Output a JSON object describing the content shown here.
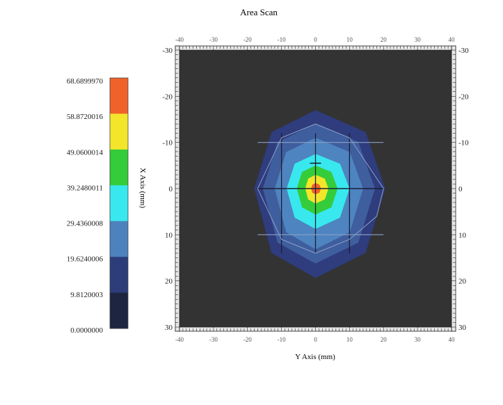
{
  "chart_data": {
    "type": "heatmap",
    "title": "Area Scan",
    "xlabel": "Y Axis (mm)",
    "ylabel": "X Axis (mm)",
    "x_range": [
      -40,
      40
    ],
    "y_range": [
      -30,
      30
    ],
    "x_ticks_small": [
      "-40",
      "-30",
      "-20",
      "-10",
      "0",
      "10",
      "20",
      "30",
      "40"
    ],
    "y_ticks_main": [
      "-30",
      "-20",
      "-10",
      "0",
      "10",
      "20",
      "30"
    ],
    "y_inverted": true,
    "colorbar": {
      "labels": [
        "68.6899970",
        "58.8720016",
        "49.0600014",
        "39.2480011",
        "29.4360008",
        "19.6240006",
        "9.8120003",
        "0.0000000"
      ],
      "bands_top_to_bottom": [
        "#f0622a",
        "#f3e62a",
        "#34cc3a",
        "#38e8ee",
        "#4e82bc",
        "#2c3d7a",
        "#1e2540"
      ]
    },
    "peak": {
      "x": 0,
      "y": 0,
      "value": 68.69
    },
    "contour_levels": [
      {
        "value": 9.812,
        "color": "#2f3c7d",
        "radii_x": [
          20.5,
          18,
          14,
          8
        ],
        "radii_y": [
          17,
          15.5,
          12.5,
          11
        ]
      },
      {
        "value": 19.624,
        "color": "#3f5e9e",
        "radii_x": [
          17.5,
          15.5,
          11.5,
          6
        ],
        "radii_y": [
          14,
          13,
          10.5,
          9
        ]
      },
      {
        "value": 29.436,
        "color": "#4e84c0",
        "radii_x": [
          14,
          12,
          9,
          4
        ],
        "radii_y": [
          11,
          10.5,
          8.5,
          7
        ]
      },
      {
        "value": 39.248,
        "color": "#38e8ee",
        "radii_x": [
          10,
          8.5,
          6.5,
          3
        ],
        "radii_y": [
          7.5,
          7,
          5.8,
          4.8
        ]
      },
      {
        "value": 49.06,
        "color": "#34cc3a",
        "radii_x": [
          6.5,
          5.5,
          4,
          2
        ],
        "radii_y": [
          5,
          4.5,
          3.8,
          3.2
        ]
      },
      {
        "value": 58.872,
        "color": "#f3e62a",
        "radii_x": [
          3.8,
          3,
          2.2,
          1
        ],
        "radii_y": [
          3,
          2.6,
          2.2,
          1.8
        ]
      },
      {
        "value": 68.69,
        "color": "#f0622a",
        "radii_x": [
          1.6,
          1.3,
          0.9,
          0.5
        ],
        "radii_y": [
          1.2,
          1,
          0.9,
          0.7
        ]
      }
    ],
    "measurement_grid": {
      "x_lines": [
        -10,
        0,
        10
      ],
      "y_lines": [
        -10,
        0,
        10
      ],
      "extent_x": [
        -17,
        20
      ],
      "extent_y": [
        -12,
        14
      ]
    },
    "markers": [
      {
        "x": 0,
        "y": -5.5
      }
    ],
    "colors": {
      "background_field": "#333333",
      "frame": "#e8e8e8",
      "grid": "#8aa0c8"
    }
  }
}
